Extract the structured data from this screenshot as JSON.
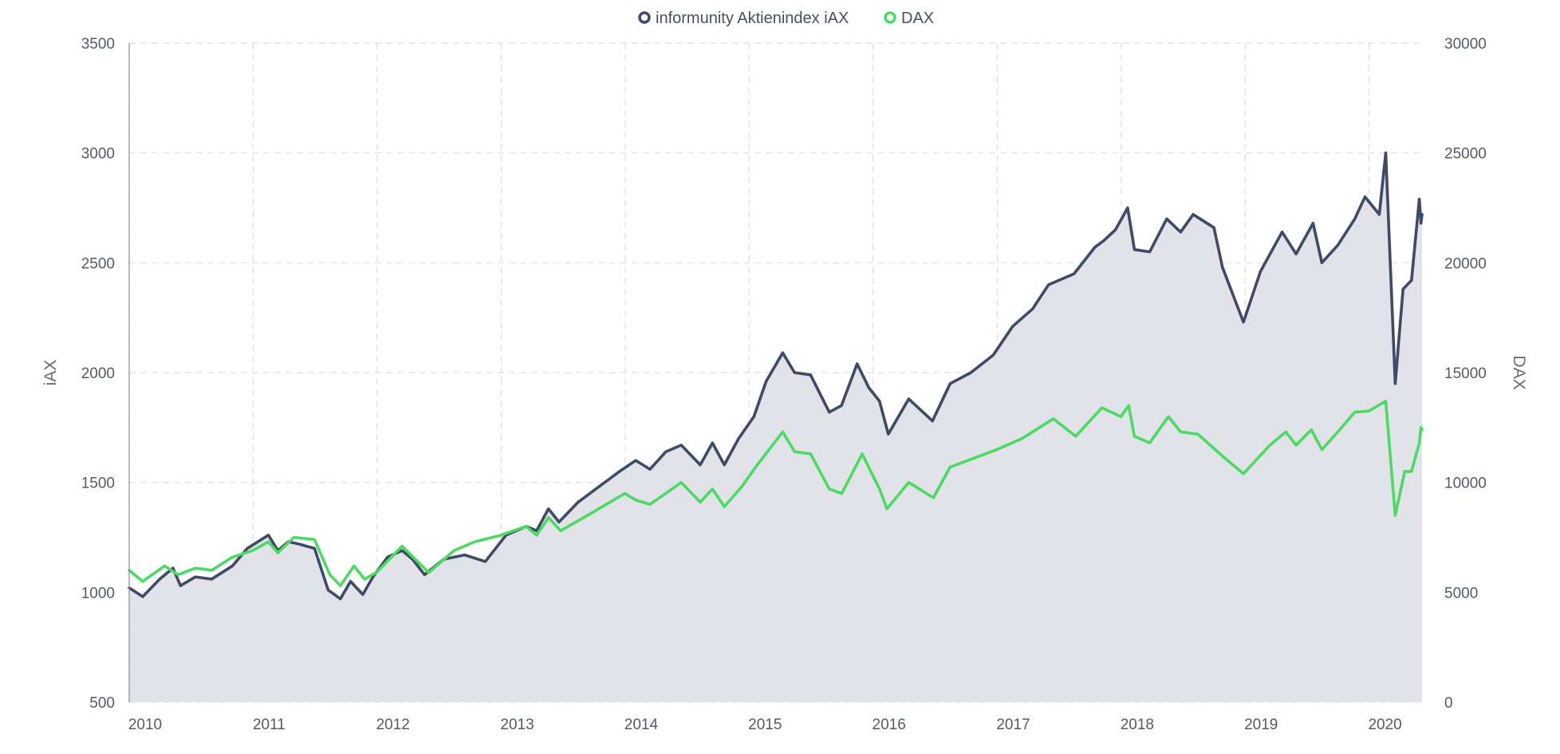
{
  "legend": [
    {
      "label": "informunity Aktienindex iAX",
      "color": "#3e4a66"
    },
    {
      "label": "DAX",
      "color": "#4cd964"
    }
  ],
  "chart_data": {
    "type": "line",
    "x_axis": {
      "type": "date",
      "range": [
        "2010-01-01",
        "2020-06-05"
      ],
      "tick_labels": [
        "2010",
        "2011",
        "2012",
        "2013",
        "2014",
        "2015",
        "2016",
        "2017",
        "2018",
        "2019",
        "2020"
      ],
      "grid": true
    },
    "y_left": {
      "label": "iAX",
      "range": [
        500,
        3500
      ],
      "ticks": [
        500,
        1000,
        1500,
        2000,
        2500,
        3000,
        3500
      ],
      "grid": true
    },
    "y_right": {
      "label": "DAX",
      "range": [
        0,
        30000
      ],
      "ticks": [
        0,
        5000,
        10000,
        15000,
        20000,
        25000,
        30000
      ]
    },
    "legend_position": "top-center",
    "series": [
      {
        "name": "informunity Aktienindex iAX",
        "axis": "left",
        "color": "#3e4a66",
        "area": true,
        "area_color": "#e1e3e8",
        "points": [
          [
            "2010-01-01",
            1020
          ],
          [
            "2010-02-10",
            980
          ],
          [
            "2010-04-01",
            1060
          ],
          [
            "2010-05-10",
            1110
          ],
          [
            "2010-06-01",
            1030
          ],
          [
            "2010-07-15",
            1070
          ],
          [
            "2010-09-01",
            1060
          ],
          [
            "2010-11-01",
            1120
          ],
          [
            "2010-12-15",
            1200
          ],
          [
            "2011-01-15",
            1230
          ],
          [
            "2011-02-15",
            1260
          ],
          [
            "2011-03-15",
            1190
          ],
          [
            "2011-04-15",
            1230
          ],
          [
            "2011-05-15",
            1220
          ],
          [
            "2011-07-01",
            1200
          ],
          [
            "2011-08-10",
            1010
          ],
          [
            "2011-09-15",
            970
          ],
          [
            "2011-10-15",
            1050
          ],
          [
            "2011-11-20",
            990
          ],
          [
            "2011-12-20",
            1070
          ],
          [
            "2012-02-01",
            1160
          ],
          [
            "2012-03-15",
            1190
          ],
          [
            "2012-04-15",
            1150
          ],
          [
            "2012-05-20",
            1080
          ],
          [
            "2012-07-15",
            1150
          ],
          [
            "2012-09-15",
            1170
          ],
          [
            "2012-11-15",
            1140
          ],
          [
            "2013-01-15",
            1260
          ],
          [
            "2013-03-15",
            1300
          ],
          [
            "2013-04-15",
            1280
          ],
          [
            "2013-05-20",
            1380
          ],
          [
            "2013-06-20",
            1320
          ],
          [
            "2013-08-15",
            1410
          ],
          [
            "2013-10-15",
            1480
          ],
          [
            "2013-12-15",
            1550
          ],
          [
            "2014-02-01",
            1600
          ],
          [
            "2014-03-15",
            1560
          ],
          [
            "2014-05-01",
            1640
          ],
          [
            "2014-06-15",
            1670
          ],
          [
            "2014-08-10",
            1580
          ],
          [
            "2014-09-15",
            1680
          ],
          [
            "2014-10-20",
            1580
          ],
          [
            "2014-12-01",
            1700
          ],
          [
            "2015-01-15",
            1800
          ],
          [
            "2015-02-20",
            1960
          ],
          [
            "2015-04-10",
            2090
          ],
          [
            "2015-05-15",
            2000
          ],
          [
            "2015-07-01",
            1990
          ],
          [
            "2015-08-25",
            1820
          ],
          [
            "2015-09-30",
            1850
          ],
          [
            "2015-11-15",
            2040
          ],
          [
            "2015-12-20",
            1930
          ],
          [
            "2016-01-20",
            1870
          ],
          [
            "2016-02-15",
            1720
          ],
          [
            "2016-04-15",
            1880
          ],
          [
            "2016-06-24",
            1780
          ],
          [
            "2016-08-15",
            1950
          ],
          [
            "2016-10-15",
            2000
          ],
          [
            "2016-12-20",
            2080
          ],
          [
            "2017-02-15",
            2210
          ],
          [
            "2017-04-15",
            2290
          ],
          [
            "2017-06-01",
            2400
          ],
          [
            "2017-08-15",
            2450
          ],
          [
            "2017-10-15",
            2570
          ],
          [
            "2017-11-10",
            2600
          ],
          [
            "2017-12-15",
            2650
          ],
          [
            "2018-01-20",
            2750
          ],
          [
            "2018-02-09",
            2560
          ],
          [
            "2018-03-26",
            2550
          ],
          [
            "2018-05-15",
            2700
          ],
          [
            "2018-06-25",
            2640
          ],
          [
            "2018-08-01",
            2720
          ],
          [
            "2018-10-01",
            2660
          ],
          [
            "2018-10-26",
            2480
          ],
          [
            "2018-12-27",
            2230
          ],
          [
            "2019-02-15",
            2460
          ],
          [
            "2019-04-20",
            2640
          ],
          [
            "2019-05-31",
            2540
          ],
          [
            "2019-07-20",
            2680
          ],
          [
            "2019-08-15",
            2500
          ],
          [
            "2019-10-01",
            2580
          ],
          [
            "2019-11-20",
            2700
          ],
          [
            "2019-12-20",
            2800
          ],
          [
            "2020-01-31",
            2720
          ],
          [
            "2020-02-19",
            3000
          ],
          [
            "2020-03-18",
            1950
          ],
          [
            "2020-04-10",
            2380
          ],
          [
            "2020-05-05",
            2420
          ],
          [
            "2020-05-28",
            2790
          ],
          [
            "2020-06-02",
            2680
          ],
          [
            "2020-06-05",
            2720
          ]
        ]
      },
      {
        "name": "DAX",
        "axis": "right",
        "color": "#4cd964",
        "area": false,
        "points": [
          [
            "2010-01-01",
            6000
          ],
          [
            "2010-02-10",
            5500
          ],
          [
            "2010-04-15",
            6200
          ],
          [
            "2010-05-25",
            5800
          ],
          [
            "2010-07-15",
            6100
          ],
          [
            "2010-09-01",
            6000
          ],
          [
            "2010-11-01",
            6600
          ],
          [
            "2010-12-31",
            6900
          ],
          [
            "2011-02-15",
            7300
          ],
          [
            "2011-03-15",
            6800
          ],
          [
            "2011-05-01",
            7500
          ],
          [
            "2011-07-01",
            7400
          ],
          [
            "2011-08-15",
            5800
          ],
          [
            "2011-09-15",
            5300
          ],
          [
            "2011-10-25",
            6200
          ],
          [
            "2011-11-25",
            5600
          ],
          [
            "2011-12-30",
            5900
          ],
          [
            "2012-03-15",
            7100
          ],
          [
            "2012-06-01",
            5900
          ],
          [
            "2012-08-15",
            6900
          ],
          [
            "2012-10-15",
            7300
          ],
          [
            "2012-12-31",
            7600
          ],
          [
            "2013-03-15",
            8000
          ],
          [
            "2013-04-15",
            7600
          ],
          [
            "2013-05-20",
            8400
          ],
          [
            "2013-06-25",
            7800
          ],
          [
            "2013-09-01",
            8400
          ],
          [
            "2013-12-31",
            9500
          ],
          [
            "2014-02-01",
            9200
          ],
          [
            "2014-03-15",
            9000
          ],
          [
            "2014-06-15",
            10000
          ],
          [
            "2014-08-10",
            9100
          ],
          [
            "2014-09-15",
            9700
          ],
          [
            "2014-10-20",
            8900
          ],
          [
            "2014-12-10",
            9800
          ],
          [
            "2015-01-20",
            10700
          ],
          [
            "2015-04-10",
            12300
          ],
          [
            "2015-05-15",
            11400
          ],
          [
            "2015-07-01",
            11300
          ],
          [
            "2015-08-25",
            9700
          ],
          [
            "2015-10-01",
            9500
          ],
          [
            "2015-11-30",
            11300
          ],
          [
            "2016-01-20",
            9700
          ],
          [
            "2016-02-11",
            8800
          ],
          [
            "2016-04-15",
            10000
          ],
          [
            "2016-06-27",
            9300
          ],
          [
            "2016-08-15",
            10700
          ],
          [
            "2016-12-31",
            11500
          ],
          [
            "2017-03-15",
            12000
          ],
          [
            "2017-06-15",
            12900
          ],
          [
            "2017-08-20",
            12100
          ],
          [
            "2017-11-05",
            13400
          ],
          [
            "2017-12-31",
            13000
          ],
          [
            "2018-01-23",
            13500
          ],
          [
            "2018-02-09",
            12100
          ],
          [
            "2018-03-26",
            11800
          ],
          [
            "2018-05-20",
            13000
          ],
          [
            "2018-06-25",
            12300
          ],
          [
            "2018-08-15",
            12200
          ],
          [
            "2018-10-26",
            11200
          ],
          [
            "2018-12-27",
            10400
          ],
          [
            "2019-03-15",
            11700
          ],
          [
            "2019-05-01",
            12300
          ],
          [
            "2019-05-31",
            11700
          ],
          [
            "2019-07-15",
            12400
          ],
          [
            "2019-08-15",
            11500
          ],
          [
            "2019-10-01",
            12300
          ],
          [
            "2019-11-20",
            13200
          ],
          [
            "2019-12-31",
            13250
          ],
          [
            "2020-02-19",
            13700
          ],
          [
            "2020-03-18",
            8500
          ],
          [
            "2020-04-15",
            10500
          ],
          [
            "2020-05-05",
            10500
          ],
          [
            "2020-05-28",
            11800
          ],
          [
            "2020-06-02",
            12500
          ],
          [
            "2020-06-05",
            12400
          ]
        ]
      }
    ]
  }
}
